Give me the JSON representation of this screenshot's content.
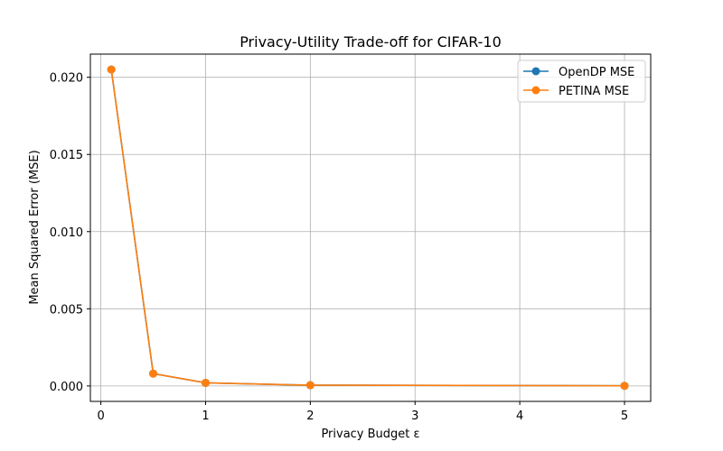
{
  "chart_data": {
    "type": "line",
    "title": "Privacy-Utility Trade-off for CIFAR-10",
    "xlabel": "Privacy Budget ε",
    "ylabel": "Mean Squared Error (MSE)",
    "xlim": [
      -0.1,
      5.25
    ],
    "ylim": [
      -0.001,
      0.0215
    ],
    "xticks": [
      0,
      1,
      2,
      3,
      4,
      5
    ],
    "xtick_labels": [
      "0",
      "1",
      "2",
      "3",
      "4",
      "5"
    ],
    "yticks": [
      0.0,
      0.005,
      0.01,
      0.015,
      0.02
    ],
    "ytick_labels": [
      "0.000",
      "0.005",
      "0.010",
      "0.015",
      "0.020"
    ],
    "grid": true,
    "legend_position": "top-right",
    "x": [
      0.1,
      0.5,
      1,
      2,
      5
    ],
    "series": [
      {
        "name": "OpenDP MSE",
        "color": "#1f77b4",
        "values": [
          0.0205,
          0.0008,
          0.0002,
          5e-05,
          1e-05
        ]
      },
      {
        "name": "PETINA MSE",
        "color": "#ff7f0e",
        "values": [
          0.0205,
          0.0008,
          0.0002,
          5e-05,
          1e-05
        ]
      }
    ]
  }
}
